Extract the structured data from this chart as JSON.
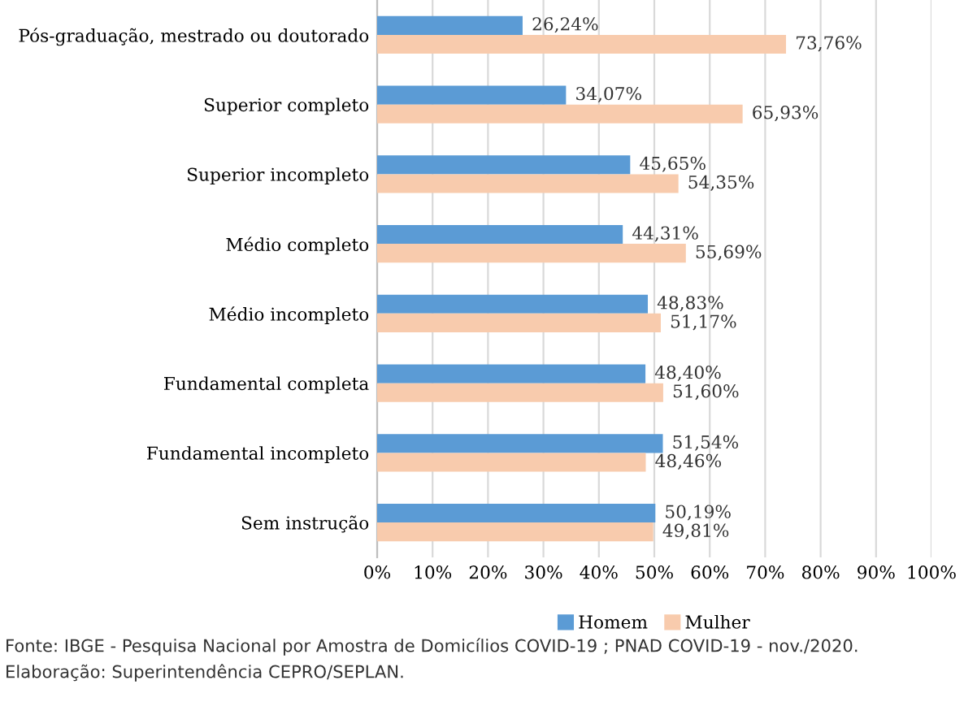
{
  "chart_data": {
    "type": "bar",
    "orientation": "horizontal",
    "categories": [
      "Pós-graduação, mestrado ou doutorado",
      "Superior completo",
      "Superior incompleto",
      "Médio completo",
      "Médio incompleto",
      "Fundamental completa",
      "Fundamental incompleto",
      "Sem instrução"
    ],
    "series": [
      {
        "name": "Homem",
        "color": "#5b9bd5",
        "values": [
          26.24,
          34.07,
          45.65,
          44.31,
          48.83,
          48.4,
          51.54,
          50.19
        ],
        "value_labels": [
          "26,24%",
          "34,07%",
          "45,65%",
          "44,31%",
          "48,83%",
          "48,40%",
          "51,54%",
          "50,19%"
        ]
      },
      {
        "name": "Mulher",
        "color": "#f8cbad",
        "values": [
          73.76,
          65.93,
          54.35,
          55.69,
          51.17,
          51.6,
          48.46,
          49.81
        ],
        "value_labels": [
          "73,76%",
          "65,93%",
          "54,35%",
          "55,69%",
          "51,17%",
          "51,60%",
          "48,46%",
          "49,81%"
        ]
      }
    ],
    "xlim": [
      0,
      100
    ],
    "xticks": [
      {
        "value": 0,
        "label": "0%"
      },
      {
        "value": 10,
        "label": "10%"
      },
      {
        "value": 20,
        "label": "20%"
      },
      {
        "value": 30,
        "label": "30%"
      },
      {
        "value": 40,
        "label": "40%"
      },
      {
        "value": 50,
        "label": "50%"
      },
      {
        "value": 60,
        "label": "60%"
      },
      {
        "value": 70,
        "label": "70%"
      },
      {
        "value": 80,
        "label": "80%"
      },
      {
        "value": 90,
        "label": "90%"
      },
      {
        "value": 100,
        "label": "100%"
      }
    ],
    "grid": "x",
    "legend": "bottom",
    "annotations": [
      "Fonte: IBGE - Pesquisa Nacional por Amostra de Domicílios COVID-19 ; PNAD COVID-19 - nov./2020.",
      "Elaboração: Superintendência CEPRO/SEPLAN."
    ]
  }
}
